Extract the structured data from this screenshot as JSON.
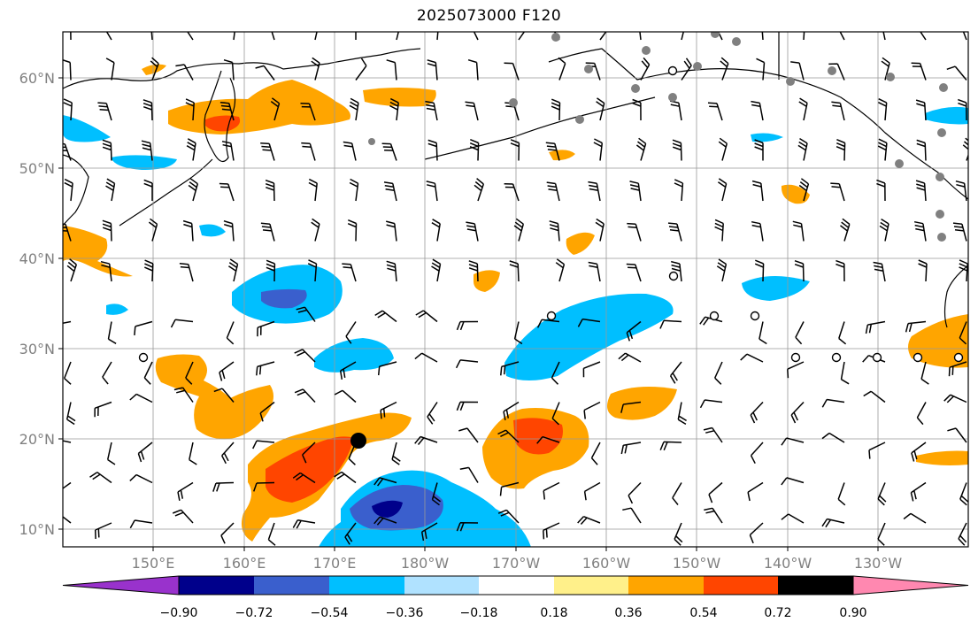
{
  "title": "2025073000 F120",
  "lat_labels": [
    "10°N",
    "20°N",
    "30°N",
    "40°N",
    "50°N",
    "60°N"
  ],
  "lon_labels": [
    "150°E",
    "160°E",
    "170°E",
    "180°W",
    "170°W",
    "160°W",
    "150°W",
    "140°W",
    "130°W"
  ],
  "colorbar": {
    "colors": [
      "#9932cc",
      "#00008b",
      "#3a5fcd",
      "#00bfff",
      "#b0e2ff",
      "#ffffff",
      "#fff08a",
      "#ffa500",
      "#ff4500",
      "#b22222",
      "#ff88b0"
    ],
    "ticks": [
      "−0.90",
      "−0.72",
      "−0.54",
      "−0.36",
      "−0.18",
      "0.18",
      "0.36",
      "0.54",
      "0.72",
      "0.90"
    ]
  },
  "palette": {
    "deep_neg": "#00008b",
    "strong_neg": "#3a5fcd",
    "neg": "#00bfff",
    "pos": "#ffa500",
    "strong_pos": "#ff4500",
    "deep_pos": "#b22222",
    "gray_marker": "#808080"
  }
}
